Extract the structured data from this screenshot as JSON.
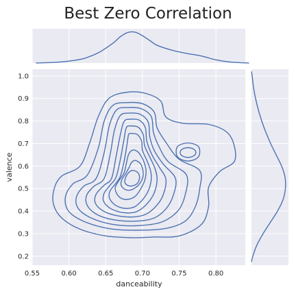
{
  "chart_data": {
    "type": "kde-jointplot",
    "title": "Best Zero Correlation",
    "xlabel": "danceability",
    "ylabel": "valence",
    "xlim": [
      0.55,
      0.84
    ],
    "ylim": [
      0.16,
      1.03
    ],
    "x_ticks": [
      "0.55",
      "0.60",
      "0.65",
      "0.70",
      "0.75",
      "0.80"
    ],
    "y_ticks": [
      "0.2",
      "0.3",
      "0.4",
      "0.5",
      "0.6",
      "0.7",
      "0.8",
      "0.9",
      "1.0"
    ],
    "grid": true,
    "colors": {
      "line": "#4c72b0",
      "panel_bg": "#eaeaf2",
      "grid": "#ffffff"
    },
    "contours": [
      [
        [
          0.68,
          0.928
        ],
        [
          0.705,
          0.922
        ],
        [
          0.725,
          0.888
        ],
        [
          0.732,
          0.818
        ],
        [
          0.755,
          0.79
        ],
        [
          0.79,
          0.785
        ],
        [
          0.815,
          0.75
        ],
        [
          0.825,
          0.69
        ],
        [
          0.825,
          0.62
        ],
        [
          0.805,
          0.575
        ],
        [
          0.79,
          0.505
        ],
        [
          0.79,
          0.42
        ],
        [
          0.78,
          0.34
        ],
        [
          0.75,
          0.29
        ],
        [
          0.715,
          0.285
        ],
        [
          0.685,
          0.282
        ],
        [
          0.65,
          0.29
        ],
        [
          0.615,
          0.32
        ],
        [
          0.59,
          0.37
        ],
        [
          0.579,
          0.43
        ],
        [
          0.58,
          0.5
        ],
        [
          0.59,
          0.555
        ],
        [
          0.615,
          0.6
        ],
        [
          0.628,
          0.7
        ],
        [
          0.64,
          0.82
        ],
        [
          0.655,
          0.902
        ]
      ],
      [
        [
          0.68,
          0.882
        ],
        [
          0.7,
          0.877
        ],
        [
          0.716,
          0.84
        ],
        [
          0.72,
          0.77
        ],
        [
          0.733,
          0.7
        ],
        [
          0.75,
          0.63
        ],
        [
          0.778,
          0.58
        ],
        [
          0.778,
          0.5
        ],
        [
          0.772,
          0.42
        ],
        [
          0.758,
          0.355
        ],
        [
          0.73,
          0.322
        ],
        [
          0.69,
          0.315
        ],
        [
          0.655,
          0.322
        ],
        [
          0.622,
          0.352
        ],
        [
          0.6,
          0.398
        ],
        [
          0.595,
          0.46
        ],
        [
          0.605,
          0.52
        ],
        [
          0.625,
          0.56
        ],
        [
          0.64,
          0.68
        ],
        [
          0.648,
          0.8
        ],
        [
          0.66,
          0.87
        ]
      ],
      [
        [
          0.68,
          0.86
        ],
        [
          0.698,
          0.855
        ],
        [
          0.712,
          0.82
        ],
        [
          0.715,
          0.75
        ],
        [
          0.722,
          0.69
        ],
        [
          0.735,
          0.62
        ],
        [
          0.76,
          0.56
        ],
        [
          0.758,
          0.47
        ],
        [
          0.748,
          0.4
        ],
        [
          0.725,
          0.35
        ],
        [
          0.69,
          0.335
        ],
        [
          0.658,
          0.342
        ],
        [
          0.63,
          0.37
        ],
        [
          0.613,
          0.41
        ],
        [
          0.61,
          0.46
        ],
        [
          0.62,
          0.51
        ],
        [
          0.637,
          0.545
        ],
        [
          0.648,
          0.66
        ],
        [
          0.655,
          0.78
        ],
        [
          0.665,
          0.85
        ]
      ],
      [
        [
          0.682,
          0.835
        ],
        [
          0.697,
          0.83
        ],
        [
          0.708,
          0.795
        ],
        [
          0.71,
          0.73
        ],
        [
          0.716,
          0.67
        ],
        [
          0.728,
          0.61
        ],
        [
          0.745,
          0.545
        ],
        [
          0.742,
          0.47
        ],
        [
          0.732,
          0.41
        ],
        [
          0.715,
          0.368
        ],
        [
          0.688,
          0.355
        ],
        [
          0.66,
          0.362
        ],
        [
          0.638,
          0.385
        ],
        [
          0.625,
          0.425
        ],
        [
          0.624,
          0.47
        ],
        [
          0.634,
          0.51
        ],
        [
          0.648,
          0.545
        ],
        [
          0.656,
          0.65
        ],
        [
          0.662,
          0.76
        ],
        [
          0.67,
          0.825
        ]
      ],
      [
        [
          0.683,
          0.808
        ],
        [
          0.696,
          0.803
        ],
        [
          0.704,
          0.77
        ],
        [
          0.706,
          0.71
        ],
        [
          0.713,
          0.65
        ],
        [
          0.723,
          0.595
        ],
        [
          0.732,
          0.54
        ],
        [
          0.728,
          0.47
        ],
        [
          0.718,
          0.42
        ],
        [
          0.704,
          0.385
        ],
        [
          0.686,
          0.374
        ],
        [
          0.665,
          0.38
        ],
        [
          0.647,
          0.4
        ],
        [
          0.636,
          0.435
        ],
        [
          0.637,
          0.475
        ],
        [
          0.648,
          0.515
        ],
        [
          0.658,
          0.545
        ],
        [
          0.664,
          0.64
        ],
        [
          0.67,
          0.74
        ],
        [
          0.675,
          0.798
        ]
      ],
      [
        [
          0.683,
          0.778
        ],
        [
          0.694,
          0.773
        ],
        [
          0.701,
          0.74
        ],
        [
          0.703,
          0.69
        ],
        [
          0.71,
          0.64
        ],
        [
          0.717,
          0.59
        ],
        [
          0.72,
          0.54
        ],
        [
          0.716,
          0.48
        ],
        [
          0.707,
          0.435
        ],
        [
          0.695,
          0.402
        ],
        [
          0.683,
          0.392
        ],
        [
          0.668,
          0.397
        ],
        [
          0.655,
          0.415
        ],
        [
          0.647,
          0.445
        ],
        [
          0.648,
          0.48
        ],
        [
          0.656,
          0.515
        ],
        [
          0.664,
          0.55
        ],
        [
          0.67,
          0.63
        ],
        [
          0.675,
          0.72
        ],
        [
          0.678,
          0.77
        ]
      ],
      [
        [
          0.684,
          0.745
        ],
        [
          0.693,
          0.74
        ],
        [
          0.699,
          0.71
        ],
        [
          0.7,
          0.67
        ],
        [
          0.706,
          0.625
        ],
        [
          0.711,
          0.58
        ],
        [
          0.712,
          0.54
        ],
        [
          0.708,
          0.49
        ],
        [
          0.7,
          0.45
        ],
        [
          0.69,
          0.42
        ],
        [
          0.68,
          0.412
        ],
        [
          0.67,
          0.416
        ],
        [
          0.661,
          0.432
        ],
        [
          0.655,
          0.46
        ],
        [
          0.656,
          0.49
        ],
        [
          0.663,
          0.52
        ],
        [
          0.67,
          0.555
        ],
        [
          0.675,
          0.62
        ],
        [
          0.679,
          0.695
        ],
        [
          0.681,
          0.738
        ]
      ],
      [
        [
          0.686,
          0.67
        ],
        [
          0.693,
          0.665
        ],
        [
          0.699,
          0.64
        ],
        [
          0.703,
          0.61
        ],
        [
          0.705,
          0.575
        ],
        [
          0.703,
          0.535
        ],
        [
          0.697,
          0.495
        ],
        [
          0.69,
          0.465
        ],
        [
          0.68,
          0.452
        ],
        [
          0.671,
          0.457
        ],
        [
          0.665,
          0.478
        ],
        [
          0.663,
          0.505
        ],
        [
          0.668,
          0.535
        ],
        [
          0.675,
          0.57
        ],
        [
          0.678,
          0.61
        ],
        [
          0.681,
          0.65
        ]
      ],
      [
        [
          0.69,
          0.625
        ],
        [
          0.697,
          0.612
        ],
        [
          0.7,
          0.59
        ],
        [
          0.701,
          0.56
        ],
        [
          0.698,
          0.53
        ],
        [
          0.691,
          0.505
        ],
        [
          0.683,
          0.493
        ],
        [
          0.676,
          0.497
        ],
        [
          0.671,
          0.515
        ],
        [
          0.672,
          0.54
        ],
        [
          0.677,
          0.565
        ],
        [
          0.682,
          0.595
        ],
        [
          0.685,
          0.615
        ]
      ],
      [
        [
          0.685,
          0.58
        ],
        [
          0.691,
          0.577
        ],
        [
          0.695,
          0.565
        ],
        [
          0.696,
          0.545
        ],
        [
          0.693,
          0.523
        ],
        [
          0.686,
          0.512
        ],
        [
          0.68,
          0.514
        ],
        [
          0.676,
          0.528
        ],
        [
          0.677,
          0.548
        ],
        [
          0.68,
          0.566
        ]
      ],
      [
        [
          0.768,
          0.7
        ],
        [
          0.777,
          0.683
        ],
        [
          0.777,
          0.645
        ],
        [
          0.768,
          0.625
        ],
        [
          0.756,
          0.625
        ],
        [
          0.747,
          0.645
        ],
        [
          0.747,
          0.683
        ],
        [
          0.756,
          0.7
        ]
      ],
      [
        [
          0.766,
          0.68
        ],
        [
          0.772,
          0.668
        ],
        [
          0.772,
          0.652
        ],
        [
          0.766,
          0.64
        ],
        [
          0.758,
          0.64
        ],
        [
          0.752,
          0.652
        ],
        [
          0.752,
          0.668
        ],
        [
          0.758,
          0.68
        ]
      ]
    ],
    "marginal_x": {
      "x": [
        0.555,
        0.58,
        0.6,
        0.62,
        0.64,
        0.66,
        0.67,
        0.68,
        0.69,
        0.7,
        0.71,
        0.72,
        0.74,
        0.76,
        0.78,
        0.8,
        0.82,
        0.845
      ],
      "density": [
        0.0,
        0.02,
        0.06,
        0.14,
        0.32,
        0.62,
        0.82,
        0.95,
        0.96,
        0.85,
        0.7,
        0.55,
        0.4,
        0.3,
        0.22,
        0.1,
        0.03,
        0.0
      ]
    },
    "marginal_y": {
      "y": [
        0.175,
        0.2,
        0.25,
        0.3,
        0.35,
        0.4,
        0.45,
        0.5,
        0.55,
        0.6,
        0.65,
        0.7,
        0.75,
        0.8,
        0.85,
        0.9,
        0.95,
        1.0,
        1.02
      ],
      "density": [
        0.0,
        0.04,
        0.16,
        0.34,
        0.55,
        0.76,
        0.92,
        0.99,
        0.98,
        0.88,
        0.72,
        0.56,
        0.42,
        0.3,
        0.2,
        0.12,
        0.06,
        0.02,
        0.0
      ]
    }
  }
}
